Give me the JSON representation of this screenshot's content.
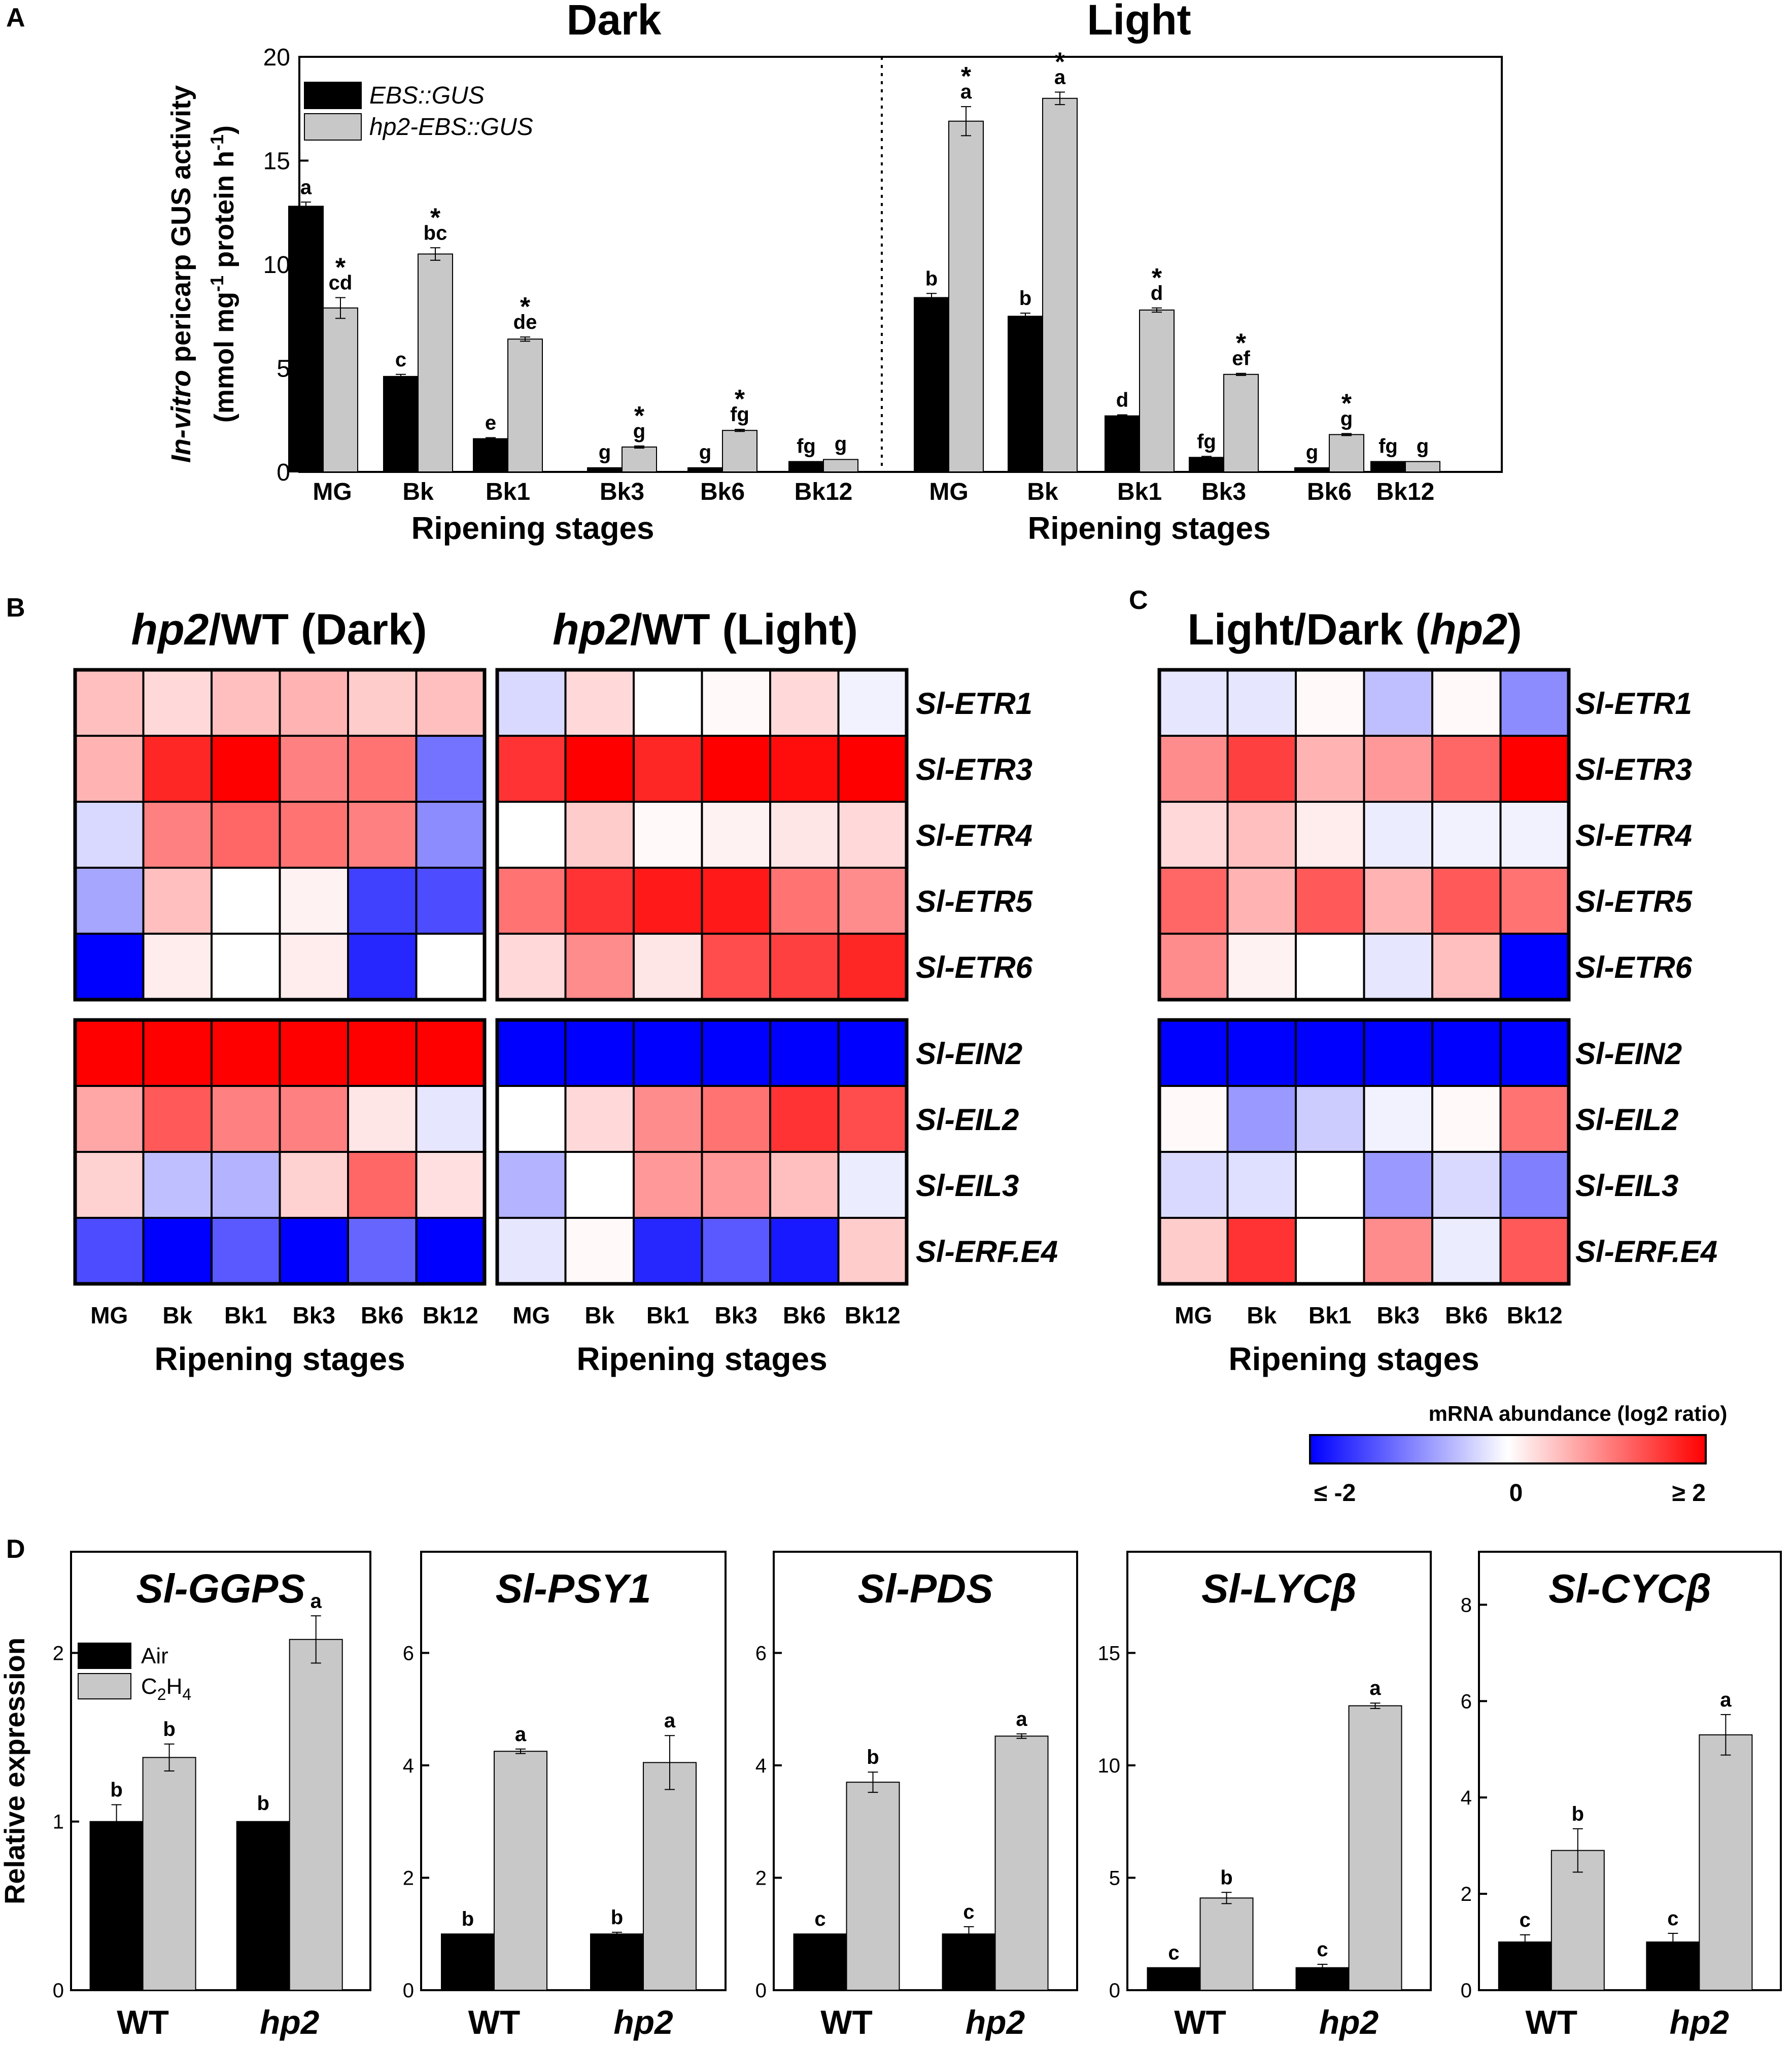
{
  "panel_labels": {
    "a": "A",
    "b": "B",
    "c": "C",
    "d": "D"
  },
  "chart_data": [
    {
      "id": "A",
      "type": "bar",
      "ylabel_line1_italic": "In-vitro",
      "ylabel_line1_rest": " pericarp GUS activity",
      "ylabel_line2": "(mmol mg-1 protein h-1)",
      "ylabel_line2_parts": [
        "(mmol mg",
        "-1",
        " protein h",
        "-1",
        ")"
      ],
      "ylim": [
        0,
        20
      ],
      "yticks": [
        0,
        5,
        10,
        15,
        20
      ],
      "legend": [
        "EBS::GUS",
        "hp2-EBS::GUS"
      ],
      "colors": [
        "#000000",
        "#c8c8c8"
      ],
      "groups": [
        {
          "title": "Dark",
          "xlabel": "Ripening stages",
          "categories": [
            "MG",
            "Bk",
            "Bk1",
            "Bk3",
            "Bk6",
            "Bk12"
          ],
          "series": [
            {
              "name": "EBS::GUS",
              "values": [
                12.8,
                4.6,
                1.6,
                0.2,
                0.2,
                0.5
              ],
              "errors": [
                0.2,
                0.1,
                0.05,
                0.03,
                0.03,
                0.03
              ],
              "letters": [
                "a",
                "c",
                "e",
                "g",
                "g",
                "fg"
              ],
              "stars": [
                false,
                false,
                false,
                false,
                false,
                false
              ]
            },
            {
              "name": "hp2-EBS::GUS",
              "values": [
                7.9,
                10.5,
                6.4,
                1.2,
                2.0,
                0.6
              ],
              "errors": [
                0.5,
                0.3,
                0.1,
                0.05,
                0.05,
                0.03
              ],
              "letters": [
                "cd",
                "bc",
                "de",
                "g",
                "fg",
                "g"
              ],
              "stars": [
                true,
                true,
                true,
                true,
                true,
                false
              ]
            }
          ]
        },
        {
          "title": "Light",
          "xlabel": "Ripening stages",
          "categories": [
            "MG",
            "Bk",
            "Bk1",
            "Bk3",
            "Bk6",
            "Bk12"
          ],
          "series": [
            {
              "name": "EBS::GUS",
              "values": [
                8.4,
                7.5,
                2.7,
                0.7,
                0.2,
                0.5
              ],
              "errors": [
                0.2,
                0.15,
                0.05,
                0.05,
                0.03,
                0.03
              ],
              "letters": [
                "b",
                "b",
                "d",
                "fg",
                "g",
                "fg"
              ],
              "stars": [
                false,
                false,
                false,
                false,
                false,
                false
              ]
            },
            {
              "name": "hp2-EBS::GUS",
              "values": [
                16.9,
                18.0,
                7.8,
                4.7,
                1.8,
                0.5
              ],
              "errors": [
                0.7,
                0.3,
                0.1,
                0.05,
                0.05,
                0.03
              ],
              "letters": [
                "a",
                "a",
                "d",
                "ef",
                "g",
                "g"
              ],
              "stars": [
                true,
                true,
                true,
                true,
                true,
                false
              ]
            }
          ]
        }
      ]
    },
    {
      "id": "B",
      "type": "heatmap",
      "xlabel": "Ripening stages",
      "columns": [
        "MG",
        "Bk",
        "Bk1",
        "Bk3",
        "Bk6",
        "Bk12"
      ],
      "rows": [
        "Sl-ETR1",
        "Sl-ETR3",
        "Sl-ETR4",
        "Sl-ETR5",
        "Sl-ETR6",
        "Sl-EIN2",
        "Sl-EIL2",
        "Sl-EIL3",
        "Sl-ERF.E4"
      ],
      "maps": [
        {
          "title_italic": "hp2",
          "title_rest": "/WT (Dark)",
          "values": [
            [
              0.5,
              0.3,
              0.5,
              0.6,
              0.4,
              0.5
            ],
            [
              0.6,
              1.7,
              2.0,
              1.0,
              1.1,
              -1.1
            ],
            [
              -0.3,
              1.0,
              1.2,
              1.1,
              1.0,
              -0.9
            ],
            [
              -0.7,
              0.5,
              0.0,
              0.1,
              -1.5,
              -1.4
            ],
            [
              -2.0,
              0.15,
              0.0,
              0.15,
              -1.7,
              0.0
            ],
            [
              2.0,
              2.0,
              2.0,
              2.0,
              2.0,
              2.0
            ],
            [
              0.7,
              1.3,
              1.0,
              1.0,
              0.2,
              -0.2
            ],
            [
              0.35,
              -0.5,
              -0.6,
              0.35,
              1.2,
              0.25
            ],
            [
              -1.4,
              -2.0,
              -1.3,
              -2.0,
              -1.2,
              -2.0
            ]
          ]
        },
        {
          "title_italic": "hp2",
          "title_rest": "/WT (Light)",
          "values": [
            [
              -0.3,
              0.3,
              0.0,
              0.05,
              0.3,
              -0.1
            ],
            [
              1.6,
              2.0,
              1.7,
              2.0,
              1.9,
              2.0
            ],
            [
              0.0,
              0.4,
              0.05,
              0.1,
              0.2,
              0.3
            ],
            [
              1.1,
              1.6,
              1.8,
              1.8,
              1.1,
              0.9
            ],
            [
              0.3,
              0.9,
              0.2,
              1.4,
              1.5,
              1.7
            ],
            [
              -2.0,
              -2.0,
              -2.0,
              -2.0,
              -2.0,
              -2.0
            ],
            [
              0.0,
              0.3,
              0.9,
              1.1,
              1.6,
              1.4
            ],
            [
              -0.6,
              0.0,
              0.8,
              0.8,
              0.5,
              -0.15
            ],
            [
              -0.2,
              0.05,
              -1.7,
              -1.3,
              -1.8,
              0.4
            ]
          ]
        }
      ]
    },
    {
      "id": "C",
      "type": "heatmap",
      "xlabel": "Ripening stages",
      "title_prefix": "Light/Dark (",
      "title_italic": "hp2",
      "title_suffix": ")",
      "columns": [
        "MG",
        "Bk",
        "Bk1",
        "Bk3",
        "Bk6",
        "Bk12"
      ],
      "rows": [
        "Sl-ETR1",
        "Sl-ETR3",
        "Sl-ETR4",
        "Sl-ETR5",
        "Sl-ETR6",
        "Sl-EIN2",
        "Sl-EIL2",
        "Sl-EIL3",
        "Sl-ERF.E4"
      ],
      "values": [
        [
          -0.2,
          -0.2,
          0.05,
          -0.5,
          0.05,
          -0.9
        ],
        [
          0.9,
          1.5,
          0.6,
          0.8,
          1.2,
          2.0
        ],
        [
          0.3,
          0.5,
          0.15,
          -0.15,
          -0.1,
          -0.1
        ],
        [
          1.2,
          0.6,
          1.3,
          0.6,
          1.3,
          1.1
        ],
        [
          0.9,
          0.1,
          0.0,
          -0.2,
          0.5,
          -2.0
        ],
        [
          -2.0,
          -2.0,
          -2.0,
          -2.0,
          -2.0,
          -2.0
        ],
        [
          0.05,
          -0.8,
          -0.4,
          -0.1,
          0.05,
          1.1
        ],
        [
          -0.3,
          -0.25,
          0.0,
          -0.8,
          -0.3,
          -1.0
        ],
        [
          0.4,
          1.6,
          0.0,
          0.9,
          -0.15,
          1.3
        ]
      ]
    },
    {
      "id": "colorbar",
      "type": "colorbar",
      "title": "mRNA abundance (log2 ratio)",
      "range": [
        -2,
        2
      ],
      "min_label": "≤ -2",
      "mid_label": "0",
      "max_label": "≥ 2",
      "colors": [
        "#0000ff",
        "#ffffff",
        "#ff0000"
      ]
    },
    {
      "id": "D",
      "type": "bar",
      "ylabel": "Relative expression",
      "categories": [
        "WT",
        "hp2"
      ],
      "legend": [
        "Air",
        "C2H4"
      ],
      "legend_c2h4_parts": [
        "C",
        "2",
        "H",
        "4"
      ],
      "colors": [
        "#000000",
        "#c8c8c8"
      ],
      "panels": [
        {
          "title": "Sl-GGPS",
          "ylim": [
            0,
            2.6
          ],
          "yticks": [
            0,
            1,
            2
          ],
          "series": [
            {
              "name": "Air",
              "values": [
                1.0,
                1.0
              ],
              "errors": [
                0.1,
                0.02
              ],
              "letters": [
                "b",
                "b"
              ]
            },
            {
              "name": "C2H4",
              "values": [
                1.38,
                2.08
              ],
              "errors": [
                0.08,
                0.14
              ],
              "letters": [
                "b",
                "a"
              ]
            }
          ]
        },
        {
          "title": "Sl-PSY1",
          "ylim": [
            0,
            7.8
          ],
          "yticks": [
            0,
            2,
            4,
            6
          ],
          "series": [
            {
              "name": "Air",
              "values": [
                1.0,
                1.0
              ],
              "errors": [
                0.0,
                0.03
              ],
              "letters": [
                "b",
                "b"
              ]
            },
            {
              "name": "C2H4",
              "values": [
                4.25,
                4.05
              ],
              "errors": [
                0.04,
                0.48
              ],
              "letters": [
                "a",
                "a"
              ]
            }
          ]
        },
        {
          "title": "Sl-PDS",
          "ylim": [
            0,
            7.8
          ],
          "yticks": [
            0,
            2,
            4,
            6
          ],
          "series": [
            {
              "name": "Air",
              "values": [
                1.0,
                1.0
              ],
              "errors": [
                0.0,
                0.13
              ],
              "letters": [
                "c",
                "c"
              ]
            },
            {
              "name": "C2H4",
              "values": [
                3.7,
                4.52
              ],
              "errors": [
                0.18,
                0.04
              ],
              "letters": [
                "b",
                "a"
              ]
            }
          ]
        },
        {
          "title": "Sl-LYCβ",
          "ylim": [
            0,
            19.5
          ],
          "yticks": [
            0,
            5,
            10,
            15
          ],
          "series": [
            {
              "name": "Air",
              "values": [
                1.0,
                1.0
              ],
              "errors": [
                0.0,
                0.15
              ],
              "letters": [
                "c",
                "c"
              ]
            },
            {
              "name": "C2H4",
              "values": [
                4.1,
                12.65
              ],
              "errors": [
                0.25,
                0.12
              ],
              "letters": [
                "b",
                "a"
              ]
            }
          ]
        },
        {
          "title": "Sl-CYCβ",
          "ylim": [
            0,
            9.1
          ],
          "yticks": [
            0,
            2,
            4,
            6,
            8
          ],
          "series": [
            {
              "name": "Air",
              "values": [
                1.0,
                1.0
              ],
              "errors": [
                0.15,
                0.18
              ],
              "letters": [
                "c",
                "c"
              ]
            },
            {
              "name": "C2H4",
              "values": [
                2.9,
                5.3
              ],
              "errors": [
                0.45,
                0.42
              ],
              "letters": [
                "b",
                "a"
              ]
            }
          ]
        }
      ]
    }
  ]
}
